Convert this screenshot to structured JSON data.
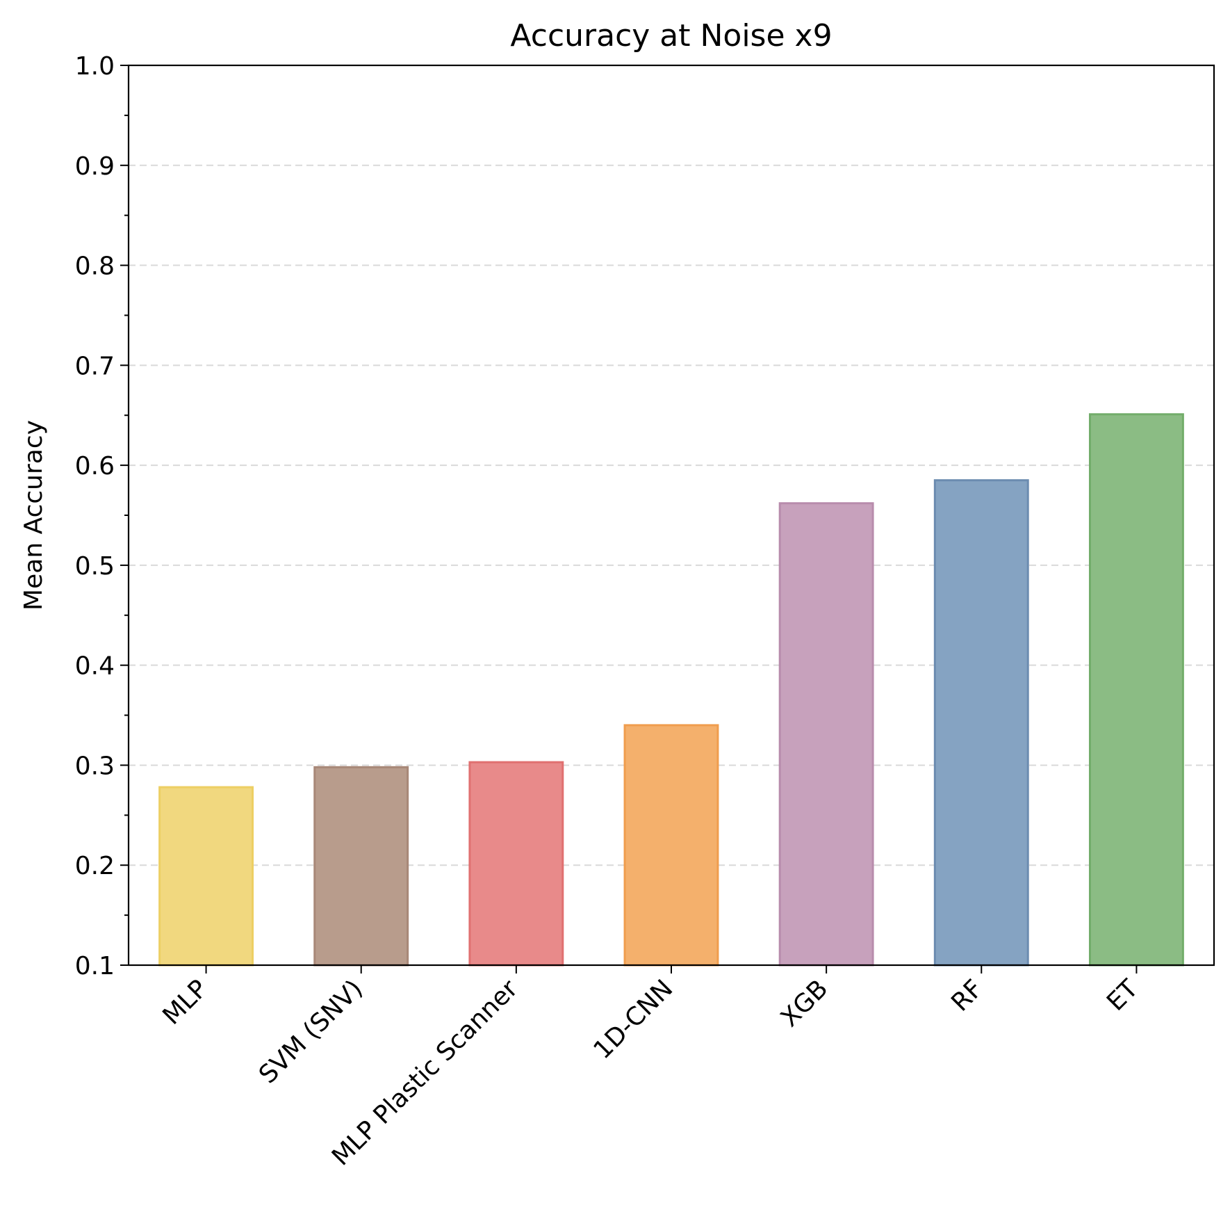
{
  "chart_data": {
    "type": "bar",
    "title": "Accuracy at Noise x9",
    "xlabel": "",
    "ylabel": "Mean Accuracy",
    "ylim": [
      0.1,
      1.0
    ],
    "yticks": [
      "0.1",
      "0.2",
      "0.3",
      "0.4",
      "0.5",
      "0.6",
      "0.7",
      "0.8",
      "0.9",
      "1.0"
    ],
    "ytick_values": [
      0.1,
      0.2,
      0.3,
      0.4,
      0.5,
      0.6,
      0.7,
      0.8,
      0.9,
      1.0
    ],
    "grid": "y-dashed",
    "categories": [
      "MLP",
      "SVM (SNV)",
      "MLP Plastic Scanner",
      "1D-CNN",
      "XGB",
      "RF",
      "ET"
    ],
    "values": [
      0.278,
      0.298,
      0.303,
      0.34,
      0.562,
      0.585,
      0.651
    ],
    "colors": [
      "#f1d87f",
      "#b89c8c",
      "#e88a8a",
      "#f4b06c",
      "#c7a1bc",
      "#85a3c2",
      "#8bbc84"
    ],
    "edge_colors": [
      "#edcf63",
      "#a88878",
      "#e07070",
      "#f09d4e",
      "#b88cac",
      "#6c8cb0",
      "#72ad6a"
    ]
  }
}
